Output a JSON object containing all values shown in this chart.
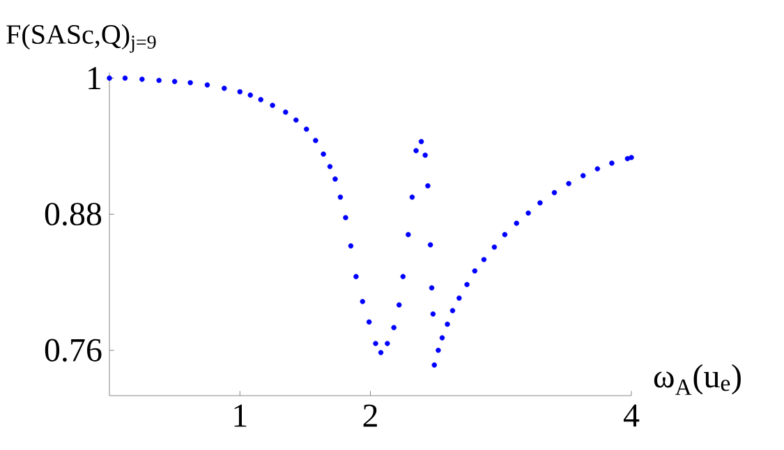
{
  "chart_data": {
    "type": "scatter",
    "ylabel": "F(SASc,Q)$_{j=9}$",
    "xlabel": "ω$_{A}$(u$_{e}$)",
    "x": [
      0,
      0.12,
      0.25,
      0.38,
      0.5,
      0.62,
      0.75,
      0.88,
      1.0,
      1.08,
      1.16,
      1.25,
      1.35,
      1.43,
      1.51,
      1.58,
      1.64,
      1.69,
      1.73,
      1.77,
      1.81,
      1.85,
      1.89,
      1.94,
      1.99,
      2.04,
      2.08,
      2.13,
      2.18,
      2.22,
      2.25,
      2.29,
      2.32,
      2.35,
      2.39,
      2.42,
      2.44,
      2.46,
      2.47,
      2.48,
      2.49,
      2.52,
      2.55,
      2.59,
      2.63,
      2.68,
      2.74,
      2.8,
      2.87,
      2.95,
      3.03,
      3.12,
      3.21,
      3.3,
      3.41,
      3.52,
      3.63,
      3.74,
      3.85,
      3.97,
      4.0
    ],
    "values": [
      1.0,
      1.0,
      0.999,
      0.998,
      0.997,
      0.996,
      0.994,
      0.991,
      0.988,
      0.985,
      0.981,
      0.976,
      0.97,
      0.963,
      0.955,
      0.945,
      0.933,
      0.922,
      0.911,
      0.895,
      0.877,
      0.852,
      0.825,
      0.803,
      0.785,
      0.766,
      0.758,
      0.766,
      0.78,
      0.8,
      0.825,
      0.862,
      0.895,
      0.936,
      0.944,
      0.932,
      0.905,
      0.853,
      0.815,
      0.792,
      0.747,
      0.76,
      0.771,
      0.783,
      0.795,
      0.806,
      0.818,
      0.83,
      0.84,
      0.851,
      0.862,
      0.872,
      0.881,
      0.89,
      0.899,
      0.907,
      0.914,
      0.92,
      0.925,
      0.929,
      0.93
    ],
    "color": "#0000ff",
    "marker": "circle",
    "xlim": [
      0,
      4
    ],
    "ylim": [
      0.72,
      1.005
    ],
    "xticks": [
      1,
      2,
      4
    ],
    "yticks": [
      1,
      0.88,
      0.76
    ]
  }
}
